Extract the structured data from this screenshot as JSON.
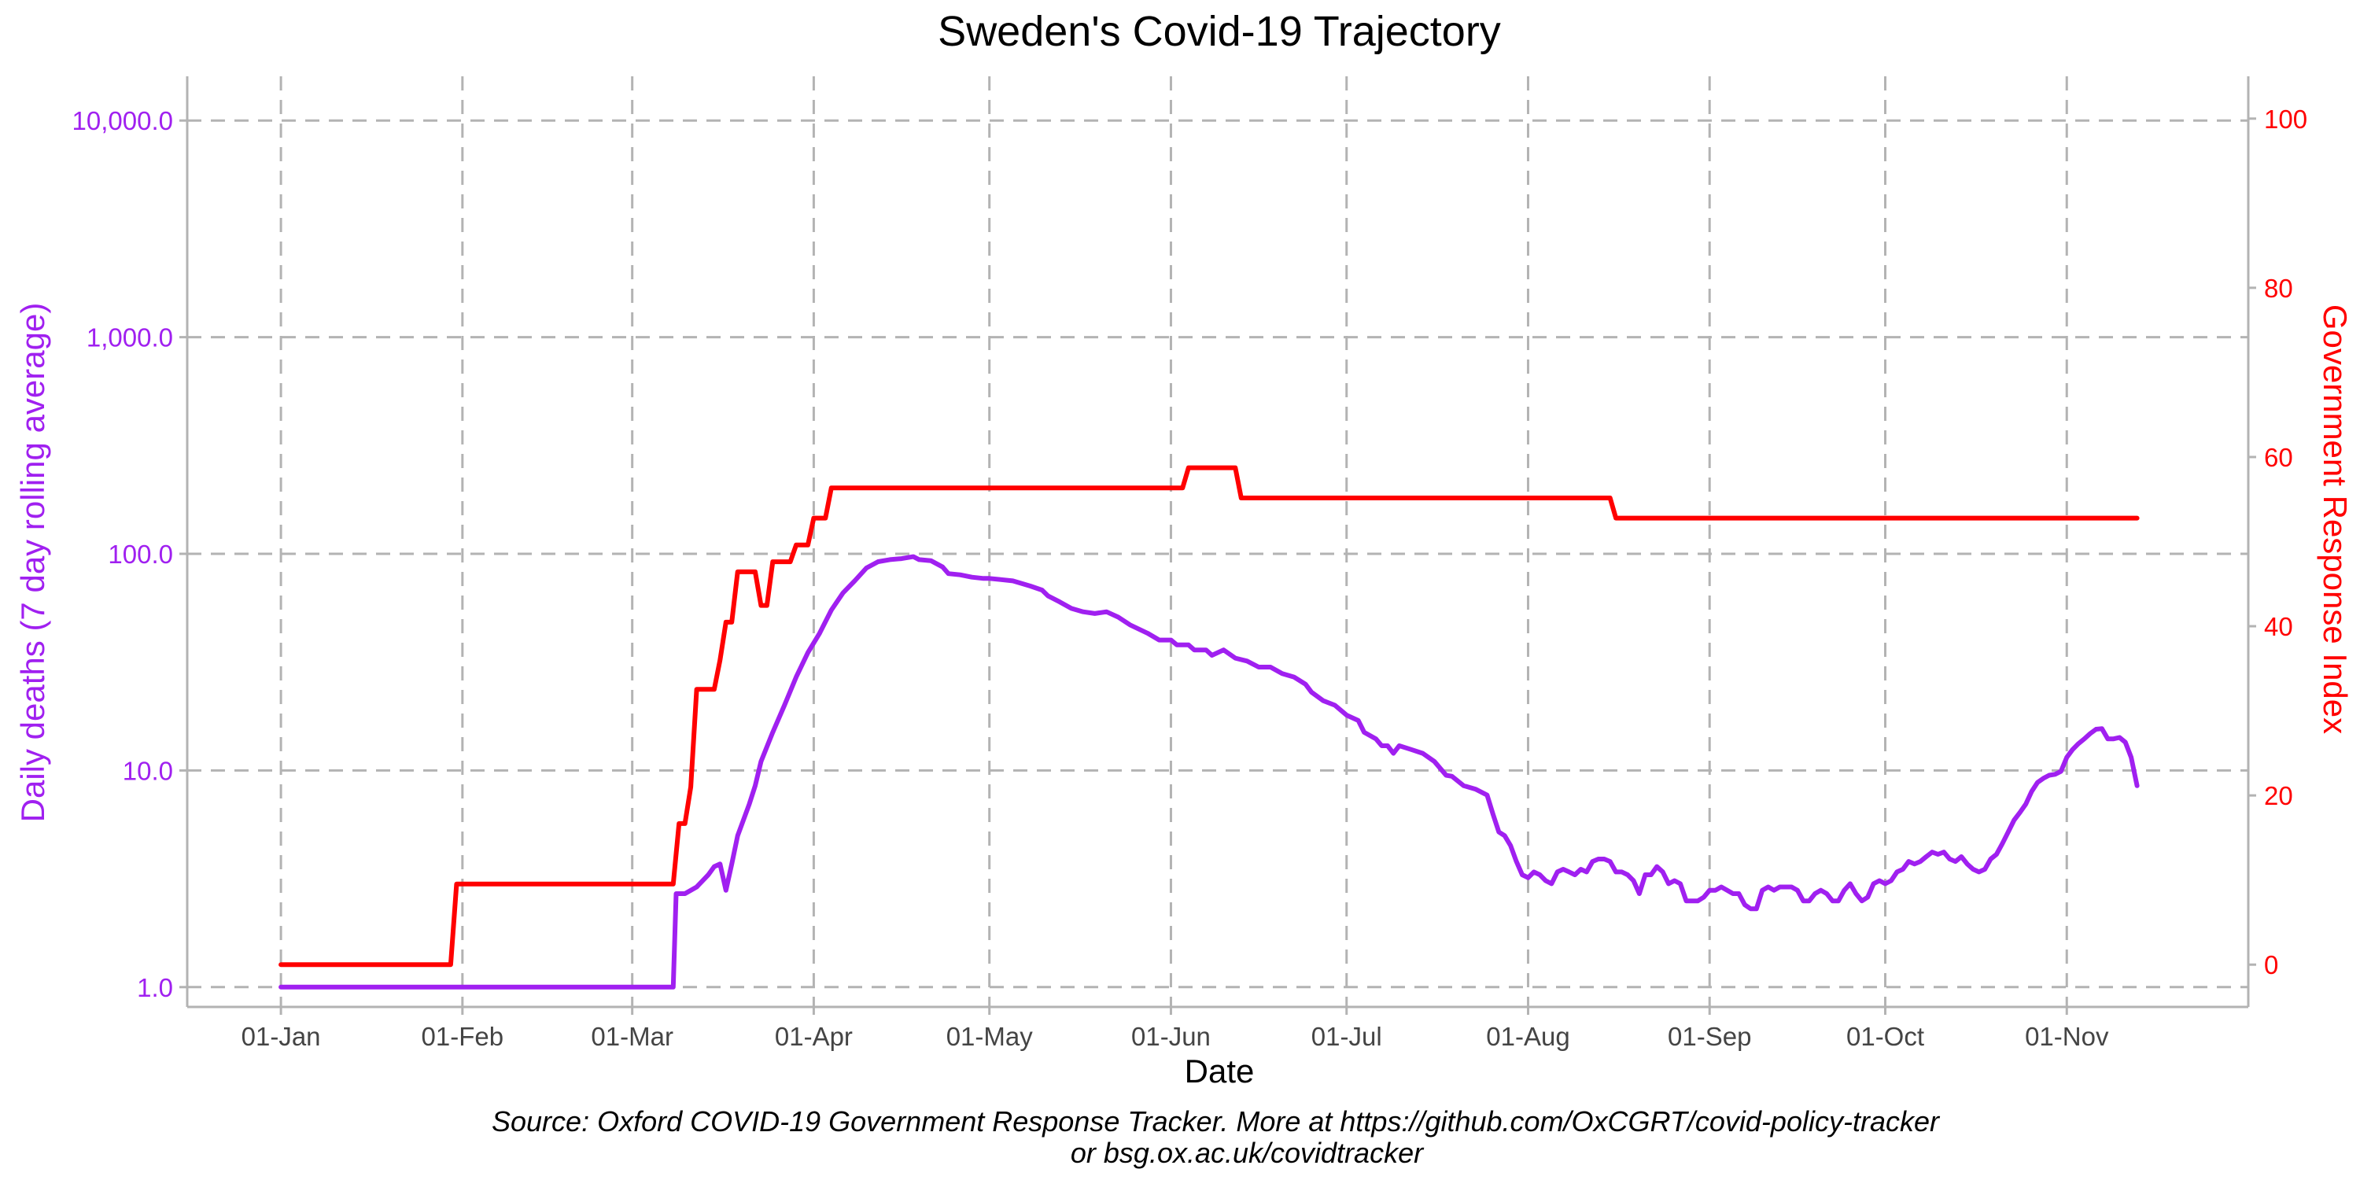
{
  "chart_data": {
    "type": "line",
    "title": "Sweden's Covid-19 Trajectory",
    "xlabel": "Date",
    "ylabel_left": "Daily deaths (7 day rolling average)",
    "ylabel_right": "Government Response Index",
    "caption_line1": "Source: Oxford COVID-19 Government Response Tracker. More at https://github.com/OxCGRT/covid-policy-tracker",
    "caption_line2": "or bsg.ox.ac.uk/covidtracker",
    "x_ticks": [
      {
        "label": "01-Jan",
        "day": 0
      },
      {
        "label": "01-Feb",
        "day": 31
      },
      {
        "label": "01-Mar",
        "day": 60
      },
      {
        "label": "01-Apr",
        "day": 91
      },
      {
        "label": "01-May",
        "day": 121
      },
      {
        "label": "01-Jun",
        "day": 152
      },
      {
        "label": "01-Jul",
        "day": 182
      },
      {
        "label": "01-Aug",
        "day": 213
      },
      {
        "label": "01-Sep",
        "day": 244
      },
      {
        "label": "01-Oct",
        "day": 274
      },
      {
        "label": "01-Nov",
        "day": 305
      }
    ],
    "y_left": {
      "scale": "log10",
      "range": [
        0.81,
        16000
      ],
      "ticks": [
        {
          "label": "1.0",
          "value": 1
        },
        {
          "label": "10.0",
          "value": 10
        },
        {
          "label": "100.0",
          "value": 100
        },
        {
          "label": "1,000.0",
          "value": 1000
        },
        {
          "label": "10,000.0",
          "value": 10000
        }
      ]
    },
    "y_right": {
      "scale": "linear",
      "range": [
        -5,
        105
      ],
      "ticks": [
        {
          "label": "0",
          "value": 0
        },
        {
          "label": "20",
          "value": 20
        },
        {
          "label": "40",
          "value": 40
        },
        {
          "label": "60",
          "value": 60
        },
        {
          "label": "80",
          "value": 80
        },
        {
          "label": "100",
          "value": 100
        }
      ]
    },
    "x_range_days": [
      -16,
      336
    ],
    "grid": true,
    "series": [
      {
        "name": "Daily deaths (7 day rolling average)",
        "axis": "left",
        "color": "#a020f0",
        "step": false,
        "points": [
          [
            0,
            1
          ],
          [
            67,
            1
          ],
          [
            67.5,
            2.7
          ],
          [
            69,
            2.7
          ],
          [
            71,
            2.9
          ],
          [
            73,
            3.3
          ],
          [
            74,
            3.6
          ],
          [
            75,
            3.7
          ],
          [
            76,
            2.8
          ],
          [
            77,
            3.7
          ],
          [
            78,
            5
          ],
          [
            80,
            7
          ],
          [
            81,
            8.5
          ],
          [
            82,
            11
          ],
          [
            84,
            15
          ],
          [
            86,
            20
          ],
          [
            88,
            27
          ],
          [
            90,
            35
          ],
          [
            92,
            43
          ],
          [
            94,
            55
          ],
          [
            96,
            66
          ],
          [
            98,
            75
          ],
          [
            100,
            86
          ],
          [
            102,
            92
          ],
          [
            104,
            94
          ],
          [
            106,
            95
          ],
          [
            108,
            97
          ],
          [
            109,
            94
          ],
          [
            111,
            93
          ],
          [
            113,
            87
          ],
          [
            114,
            81
          ],
          [
            116,
            80
          ],
          [
            118,
            78
          ],
          [
            120,
            77
          ],
          [
            121,
            77
          ],
          [
            123,
            76
          ],
          [
            125,
            75
          ],
          [
            128,
            71
          ],
          [
            130,
            68
          ],
          [
            131,
            64
          ],
          [
            133,
            60
          ],
          [
            135,
            56
          ],
          [
            137,
            54
          ],
          [
            139,
            53
          ],
          [
            141,
            54
          ],
          [
            143,
            51
          ],
          [
            145,
            47
          ],
          [
            148,
            43
          ],
          [
            150,
            40
          ],
          [
            152,
            40
          ],
          [
            153,
            38
          ],
          [
            155,
            38
          ],
          [
            156,
            36
          ],
          [
            158,
            36
          ],
          [
            159,
            34
          ],
          [
            161,
            36
          ],
          [
            163,
            33
          ],
          [
            165,
            32
          ],
          [
            167,
            30
          ],
          [
            169,
            30
          ],
          [
            171,
            28
          ],
          [
            173,
            27
          ],
          [
            175,
            25
          ],
          [
            176,
            23
          ],
          [
            178,
            21
          ],
          [
            180,
            20
          ],
          [
            182,
            18
          ],
          [
            184,
            17
          ],
          [
            185,
            15
          ],
          [
            187,
            14
          ],
          [
            188,
            13
          ],
          [
            189,
            13
          ],
          [
            190,
            12
          ],
          [
            191,
            13
          ],
          [
            193,
            12.5
          ],
          [
            195,
            12
          ],
          [
            197,
            11
          ],
          [
            199,
            9.5
          ],
          [
            200,
            9.4
          ],
          [
            202,
            8.5
          ],
          [
            204,
            8.2
          ],
          [
            206,
            7.7
          ],
          [
            207,
            6.3
          ],
          [
            208,
            5.2
          ],
          [
            209,
            5
          ],
          [
            210,
            4.5
          ],
          [
            211,
            3.8
          ],
          [
            212,
            3.3
          ],
          [
            213,
            3.2
          ],
          [
            214,
            3.4
          ],
          [
            215,
            3.3
          ],
          [
            216,
            3.1
          ],
          [
            217,
            3.0
          ],
          [
            218,
            3.4
          ],
          [
            219,
            3.5
          ],
          [
            220,
            3.4
          ],
          [
            221,
            3.3
          ],
          [
            222,
            3.5
          ],
          [
            223,
            3.4
          ],
          [
            224,
            3.8
          ],
          [
            225,
            3.9
          ],
          [
            226,
            3.9
          ],
          [
            227,
            3.8
          ],
          [
            228,
            3.4
          ],
          [
            229,
            3.4
          ],
          [
            230,
            3.3
          ],
          [
            231,
            3.1
          ],
          [
            232,
            2.7
          ],
          [
            233,
            3.3
          ],
          [
            234,
            3.3
          ],
          [
            235,
            3.6
          ],
          [
            236,
            3.4
          ],
          [
            237,
            3.0
          ],
          [
            238,
            3.1
          ],
          [
            239,
            3.0
          ],
          [
            240,
            2.5
          ],
          [
            241,
            2.5
          ],
          [
            242,
            2.5
          ],
          [
            243,
            2.6
          ],
          [
            244,
            2.8
          ],
          [
            245,
            2.8
          ],
          [
            246,
            2.9
          ],
          [
            247,
            2.8
          ],
          [
            248,
            2.7
          ],
          [
            249,
            2.7
          ],
          [
            250,
            2.4
          ],
          [
            251,
            2.3
          ],
          [
            252,
            2.3
          ],
          [
            253,
            2.8
          ],
          [
            254,
            2.9
          ],
          [
            255,
            2.8
          ],
          [
            256,
            2.9
          ],
          [
            257,
            2.9
          ],
          [
            258,
            2.9
          ],
          [
            259,
            2.8
          ],
          [
            260,
            2.5
          ],
          [
            261,
            2.5
          ],
          [
            262,
            2.7
          ],
          [
            263,
            2.8
          ],
          [
            264,
            2.7
          ],
          [
            265,
            2.5
          ],
          [
            266,
            2.5
          ],
          [
            267,
            2.8
          ],
          [
            268,
            3.0
          ],
          [
            269,
            2.7
          ],
          [
            270,
            2.5
          ],
          [
            271,
            2.6
          ],
          [
            272,
            3.0
          ],
          [
            273,
            3.1
          ],
          [
            274,
            3.0
          ],
          [
            275,
            3.1
          ],
          [
            276,
            3.4
          ],
          [
            277,
            3.5
          ],
          [
            278,
            3.8
          ],
          [
            279,
            3.7
          ],
          [
            280,
            3.8
          ],
          [
            281,
            4.0
          ],
          [
            282,
            4.2
          ],
          [
            283,
            4.1
          ],
          [
            284,
            4.2
          ],
          [
            285,
            3.9
          ],
          [
            286,
            3.8
          ],
          [
            287,
            4.0
          ],
          [
            288,
            3.7
          ],
          [
            289,
            3.5
          ],
          [
            290,
            3.4
          ],
          [
            291,
            3.5
          ],
          [
            292,
            3.9
          ],
          [
            293,
            4.1
          ],
          [
            294,
            4.6
          ],
          [
            295,
            5.2
          ],
          [
            296,
            5.9
          ],
          [
            297,
            6.4
          ],
          [
            298,
            7.0
          ],
          [
            299,
            8.0
          ],
          [
            300,
            8.8
          ],
          [
            301,
            9.2
          ],
          [
            302,
            9.5
          ],
          [
            303,
            9.6
          ],
          [
            304,
            9.9
          ],
          [
            305,
            11.5
          ],
          [
            306,
            12.5
          ],
          [
            307,
            13.3
          ],
          [
            308,
            14.0
          ],
          [
            309,
            14.8
          ],
          [
            310,
            15.5
          ],
          [
            311,
            15.6
          ],
          [
            312,
            14.0
          ],
          [
            313,
            14.0
          ],
          [
            314,
            14.2
          ],
          [
            315,
            13.5
          ],
          [
            316,
            11.5
          ],
          [
            317,
            8.5
          ]
        ]
      },
      {
        "name": "Government Response Index",
        "axis": "right",
        "color": "#ff0000",
        "step": true,
        "points": [
          [
            0,
            0
          ],
          [
            29,
            0
          ],
          [
            30,
            9.52
          ],
          [
            67,
            9.52
          ],
          [
            68,
            16.67
          ],
          [
            69,
            16.67
          ],
          [
            70,
            21
          ],
          [
            71,
            32.54
          ],
          [
            74,
            32.54
          ],
          [
            75,
            36
          ],
          [
            76,
            40.48
          ],
          [
            77,
            40.48
          ],
          [
            78,
            46.43
          ],
          [
            81,
            46.43
          ],
          [
            82,
            42.46
          ],
          [
            83,
            42.46
          ],
          [
            84,
            47.62
          ],
          [
            87,
            47.62
          ],
          [
            88,
            49.6
          ],
          [
            90,
            49.6
          ],
          [
            91,
            52.78
          ],
          [
            93,
            52.78
          ],
          [
            94,
            56.35
          ],
          [
            154,
            56.35
          ],
          [
            155,
            58.73
          ],
          [
            163,
            58.73
          ],
          [
            164,
            55.16
          ],
          [
            227,
            55.16
          ],
          [
            228,
            52.78
          ],
          [
            317,
            52.78
          ]
        ]
      }
    ]
  }
}
